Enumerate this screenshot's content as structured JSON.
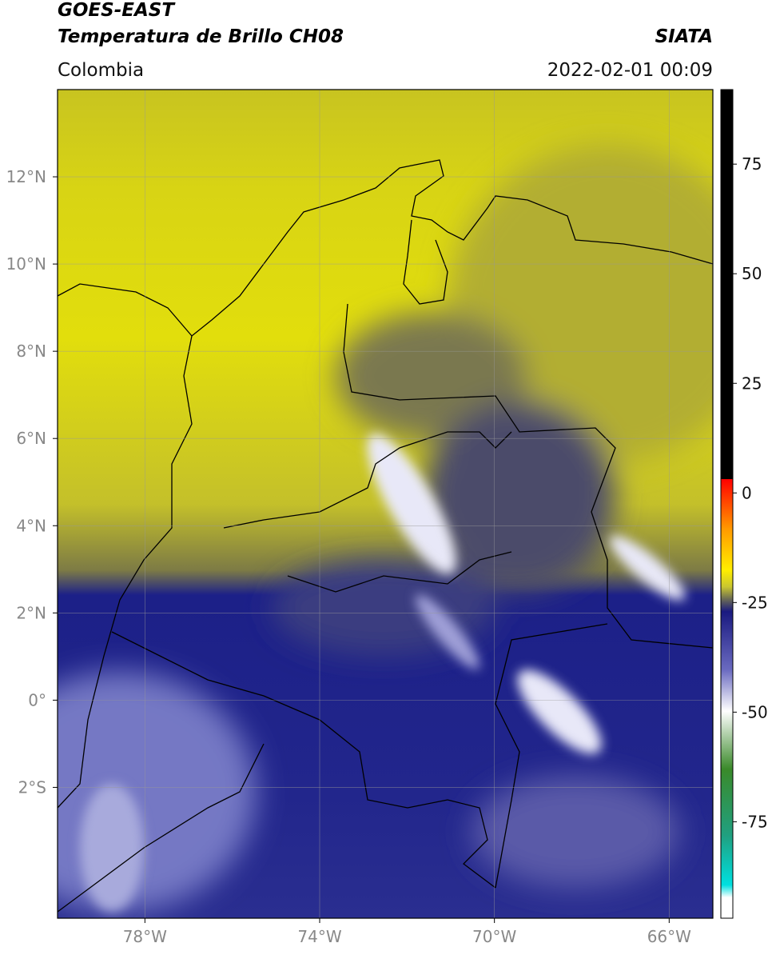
{
  "header": {
    "satellite": "GOES-EAST",
    "product": "Temperatura de Brillo CH08",
    "source": "SIATA",
    "region": "Colombia",
    "datetime": "2022-02-01 00:09"
  },
  "map": {
    "xlim": [
      -80,
      -65
    ],
    "ylim": [
      -5,
      14
    ],
    "xticks": [
      {
        "value": -78,
        "label": "78°W"
      },
      {
        "value": -74,
        "label": "74°W"
      },
      {
        "value": -70,
        "label": "70°W"
      },
      {
        "value": -66,
        "label": "66°W"
      }
    ],
    "yticks": [
      {
        "value": -2,
        "label": "2°S"
      },
      {
        "value": 0,
        "label": "0°"
      },
      {
        "value": 2,
        "label": "2°N"
      },
      {
        "value": 4,
        "label": "4°N"
      },
      {
        "value": 6,
        "label": "6°N"
      },
      {
        "value": 8,
        "label": "8°N"
      },
      {
        "value": 10,
        "label": "10°N"
      },
      {
        "value": 12,
        "label": "12°N"
      }
    ],
    "grid": true
  },
  "colorbar": {
    "lim": [
      -97,
      92
    ],
    "ticks": [
      75,
      50,
      25,
      0,
      -25,
      -50,
      -75
    ]
  }
}
